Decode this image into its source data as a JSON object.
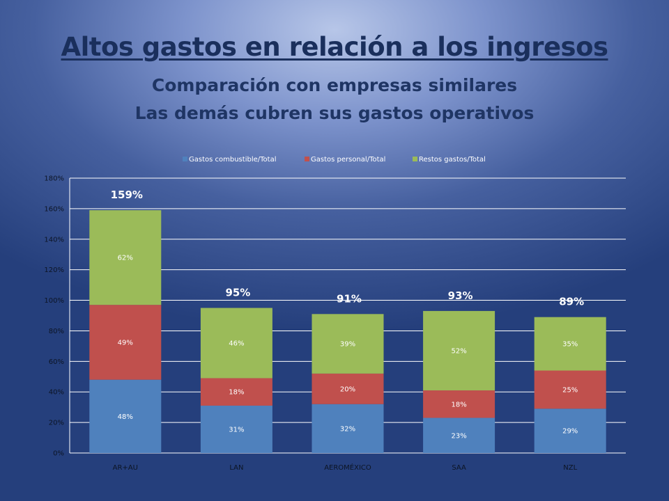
{
  "slide": {
    "title": "Altos gastos en relación a los ingresos",
    "subtitle_1": "Comparación con empresas similares",
    "subtitle_2": "Las demás cubren sus gastos operativos"
  },
  "chart_data": {
    "type": "bar",
    "stacked": true,
    "categories": [
      "AR+AU",
      "LAN",
      "AEROMÉXICO",
      "SAA",
      "NZL"
    ],
    "series": [
      {
        "name": "Gastos combustible/Total",
        "color": "#4f81bd",
        "values": [
          48,
          31,
          32,
          23,
          29
        ],
        "labels": [
          "48%",
          "31%",
          "32%",
          "23%",
          "29%"
        ]
      },
      {
        "name": "Gastos personal/Total",
        "color": "#c0504d",
        "values": [
          49,
          18,
          20,
          18,
          25
        ],
        "labels": [
          "49%",
          "18%",
          "20%",
          "18%",
          "25%"
        ]
      },
      {
        "name": "Restos gastos/Total",
        "color": "#9bbb59",
        "values": [
          62,
          46,
          39,
          52,
          35
        ],
        "labels": [
          "62%",
          "46%",
          "39%",
          "52%",
          "35%"
        ]
      }
    ],
    "totals": [
      "159%",
      "95%",
      "91%",
      "93%",
      "89%"
    ],
    "y_ticks": [
      "0%",
      "20%",
      "40%",
      "60%",
      "80%",
      "100%",
      "120%",
      "140%",
      "160%",
      "180%"
    ],
    "ylim": [
      0,
      180
    ],
    "grid": true,
    "legend_position": "top"
  }
}
